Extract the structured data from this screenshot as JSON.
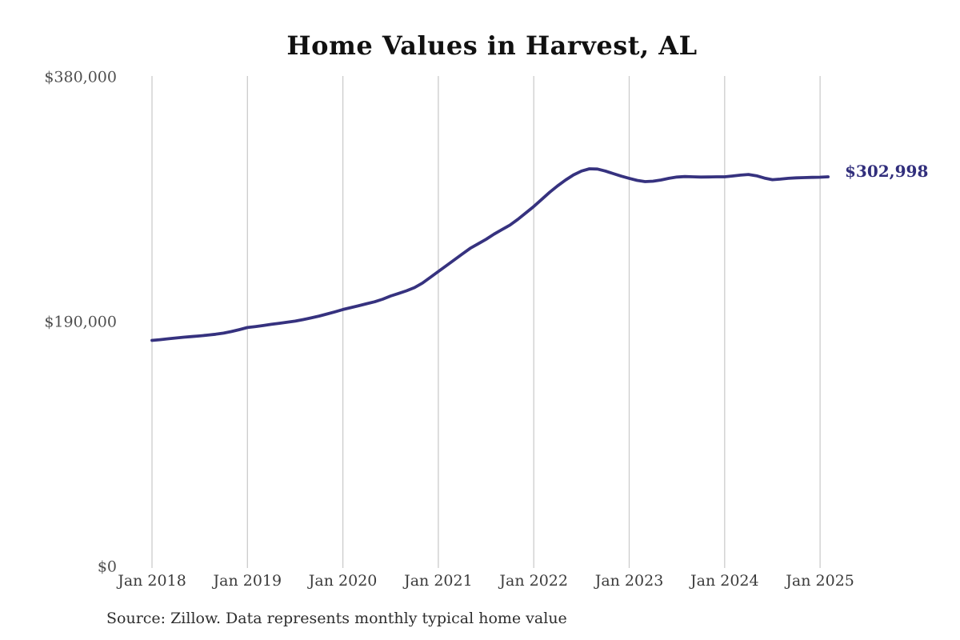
{
  "source_note": "Source: Zillow. Data represents monthly typical home value",
  "colors": {
    "line": "#36327f",
    "grid": "#cccccc",
    "end_label": "#312e7c",
    "title": "#111111",
    "y_tick_text": "#4f4f4f",
    "x_tick_text": "#3b3b3b",
    "background": "#ffffff"
  },
  "chart_data": {
    "type": "line",
    "title": "Home Values in Harvest, AL",
    "xlabel": "",
    "ylabel": "",
    "ylim": [
      0,
      380000
    ],
    "grid": "vertical-only",
    "legend": "none",
    "final_value": 302998,
    "final_value_label": "$302,998",
    "y_ticks": [
      {
        "label": "$0",
        "value": 0
      },
      {
        "label": "$190,000",
        "value": 190000
      },
      {
        "label": "$380,000",
        "value": 380000
      }
    ],
    "x_ticks": [
      {
        "label": "Jan 2018",
        "month_index": 0
      },
      {
        "label": "Jan 2019",
        "month_index": 12
      },
      {
        "label": "Jan 2020",
        "month_index": 24
      },
      {
        "label": "Jan 2021",
        "month_index": 36
      },
      {
        "label": "Jan 2022",
        "month_index": 48
      },
      {
        "label": "Jan 2023",
        "month_index": 60
      },
      {
        "label": "Jan 2024",
        "month_index": 72
      },
      {
        "label": "Jan 2025",
        "month_index": 84
      }
    ],
    "series": [
      {
        "name": "Monthly typical home value",
        "unit": "USD",
        "months": [
          "2018-01",
          "2018-02",
          "2018-03",
          "2018-04",
          "2018-05",
          "2018-06",
          "2018-07",
          "2018-08",
          "2018-09",
          "2018-10",
          "2018-11",
          "2018-12",
          "2019-01",
          "2019-02",
          "2019-03",
          "2019-04",
          "2019-05",
          "2019-06",
          "2019-07",
          "2019-08",
          "2019-09",
          "2019-10",
          "2019-11",
          "2019-12",
          "2020-01",
          "2020-02",
          "2020-03",
          "2020-04",
          "2020-05",
          "2020-06",
          "2020-07",
          "2020-08",
          "2020-09",
          "2020-10",
          "2020-11",
          "2020-12",
          "2021-01",
          "2021-02",
          "2021-03",
          "2021-04",
          "2021-05",
          "2021-06",
          "2021-07",
          "2021-08",
          "2021-09",
          "2021-10",
          "2021-11",
          "2021-12",
          "2022-01",
          "2022-02",
          "2022-03",
          "2022-04",
          "2022-05",
          "2022-06",
          "2022-07",
          "2022-08",
          "2022-09",
          "2022-10",
          "2022-11",
          "2022-12",
          "2023-01",
          "2023-02",
          "2023-03",
          "2023-04",
          "2023-05",
          "2023-06",
          "2023-07",
          "2023-08",
          "2023-09",
          "2023-10",
          "2023-11",
          "2023-12",
          "2024-01",
          "2024-02",
          "2024-03",
          "2024-04",
          "2024-05",
          "2024-06",
          "2024-07",
          "2024-08",
          "2024-09",
          "2024-10",
          "2024-11",
          "2024-12",
          "2025-01",
          "2025-02"
        ],
        "values": [
          176000,
          176600,
          177300,
          177900,
          178500,
          179000,
          179500,
          180100,
          180800,
          181700,
          182900,
          184400,
          186000,
          186800,
          187600,
          188500,
          189300,
          190100,
          191000,
          192200,
          193500,
          194900,
          196500,
          198200,
          200000,
          201500,
          203000,
          204500,
          206000,
          208000,
          210500,
          212500,
          214500,
          217000,
          220500,
          225000,
          229500,
          234000,
          238500,
          243000,
          247500,
          251000,
          254500,
          258500,
          262000,
          265500,
          270000,
          275000,
          280000,
          285500,
          291000,
          296000,
          300500,
          304500,
          307500,
          309200,
          309000,
          307500,
          305500,
          303500,
          301800,
          300200,
          299300,
          299600,
          300500,
          301800,
          302800,
          303200,
          303000,
          302800,
          302900,
          303000,
          303000,
          303600,
          304300,
          304800,
          303800,
          302000,
          300800,
          301200,
          301800,
          302200,
          302400,
          302600,
          302700,
          302998
        ]
      }
    ]
  }
}
